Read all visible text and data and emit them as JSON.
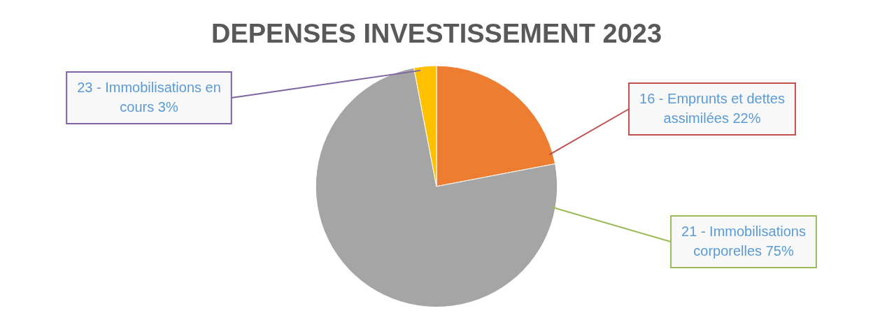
{
  "chart_data": {
    "type": "pie",
    "title": "DEPENSES INVESTISSEMENT 2023",
    "categories": [
      "16 - Emprunts et dettes assimilées",
      "21 - Immobilisations corporelles",
      "23 - Immobilisations en cours"
    ],
    "values": [
      22,
      75,
      3
    ],
    "value_labels": [
      "22%",
      "75%",
      "3%"
    ],
    "colors": [
      "#ed7d31",
      "#a5a5a5",
      "#ffc000"
    ],
    "legend": false
  }
}
